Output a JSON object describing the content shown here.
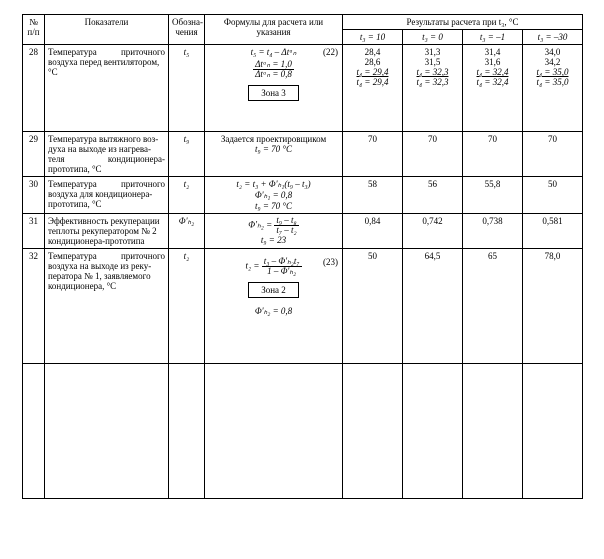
{
  "header": {
    "num": "№\nп/п",
    "indicator": "Показатели",
    "symbol": "Обозна-\nчения",
    "formula": "Формулы для расчета или\nуказания",
    "results_group": "Результаты расчета при t₃, °С",
    "cols": {
      "c1": "t₃ = 10",
      "c2": "t₃ = 0",
      "c3": "t₃ = –1",
      "c4": "t₃ = –30"
    }
  },
  "rows": {
    "r28": {
      "num": "28",
      "indicator_line1": "Температура",
      "indicator_line1b": "приточного",
      "indicator_line2": "воздуха перед вентилятором,",
      "indicator_line3": "°С",
      "symbol": "t₅",
      "formula_main": "t₅ = t₄ – Δtᵃₙ",
      "formula_eqnum": "(22)",
      "formula_frac_top": "Δtᵃₙ = 1,0",
      "formula_frac_bot": "Δtᵃₙ = 0,8",
      "zone": "Зона 3",
      "res": {
        "c1": {
          "v1": "28,4",
          "v2": "28,6",
          "v3": "t₄ = 29,4",
          "v4": "t₄ = 29,4"
        },
        "c2": {
          "v1": "31,3",
          "v2": "31,5",
          "v3": "t₄ = 32,3",
          "v4": "t₄ = 32,3"
        },
        "c3": {
          "v1": "31,4",
          "v2": "31,6",
          "v3": "t₄ = 32,4",
          "v4": "t₄ = 32,4"
        },
        "c4": {
          "v1": "34,0",
          "v2": "34,2",
          "v3": "t₄ = 35,0",
          "v4": "t₄ = 35,0"
        }
      }
    },
    "r29": {
      "num": "29",
      "indicator_l1a": "Температура вытяжного воз-",
      "indicator_l2a": "духа на выходе из нагрева-",
      "indicator_l3a": "теля",
      "indicator_l3b": "кондиционера-",
      "indicator_l4": "прототипа, °С",
      "symbol": "t₉",
      "formula_l1": "Задается проектировщиком",
      "formula_l2": "t₉ = 70 °С",
      "res": {
        "c1": "70",
        "c2": "70",
        "c3": "70",
        "c4": "70"
      }
    },
    "r30": {
      "num": "30",
      "indicator_l1a": "Температура",
      "indicator_l1b": "приточного",
      "indicator_l2": "воздуха для кондиционера-",
      "indicator_l3": "прототипа, °С",
      "symbol": "t₂",
      "formula_l1": "t₂ = t₃ + Φ'ₕ₁(t₉ – t₃)",
      "formula_l2": "Φ'ₕ₁ = 0,8",
      "formula_l3": "t₉ = 70 °С",
      "res": {
        "c1": "58",
        "c2": "56",
        "c3": "55,8",
        "c4": "50"
      }
    },
    "r31": {
      "num": "31",
      "indicator_l1": "Эффективность рекуперации",
      "indicator_l2": "теплоты рекуператором № 2",
      "indicator_l3": "кондиционера-прототипа",
      "symbol": "Φ'ₕ₂",
      "formula_top": "t₉ – t₈",
      "formula_bot": "t₇ – t₂",
      "formula_lhs": "Φ'ₕ₂ =",
      "formula_l2": "t₉ = 23",
      "res": {
        "c1": "0,84",
        "c2": "0,742",
        "c3": "0,738",
        "c4": "0,581"
      }
    },
    "r32": {
      "num": "32",
      "indicator_l1a": "Температура",
      "indicator_l1b": "приточного",
      "indicator_l2": "воздуха на выходе из реку-",
      "indicator_l3": "ператора № 1, заявляемого",
      "indicator_l4": "кондиционера, °С",
      "symbol": "t₂",
      "formula_lhs": "t₂ =",
      "formula_top": "t₃ – Φ'ₕ₂t₇",
      "formula_bot": "1 – Φ'ₕ₂",
      "formula_eqnum": "(23)",
      "zone": "Зона 2",
      "formula_extra": "Φ'ₕ₂ = 0,8",
      "res": {
        "c1": "50",
        "c2": "64,5",
        "c3": "65",
        "c4": "78,0"
      }
    }
  }
}
